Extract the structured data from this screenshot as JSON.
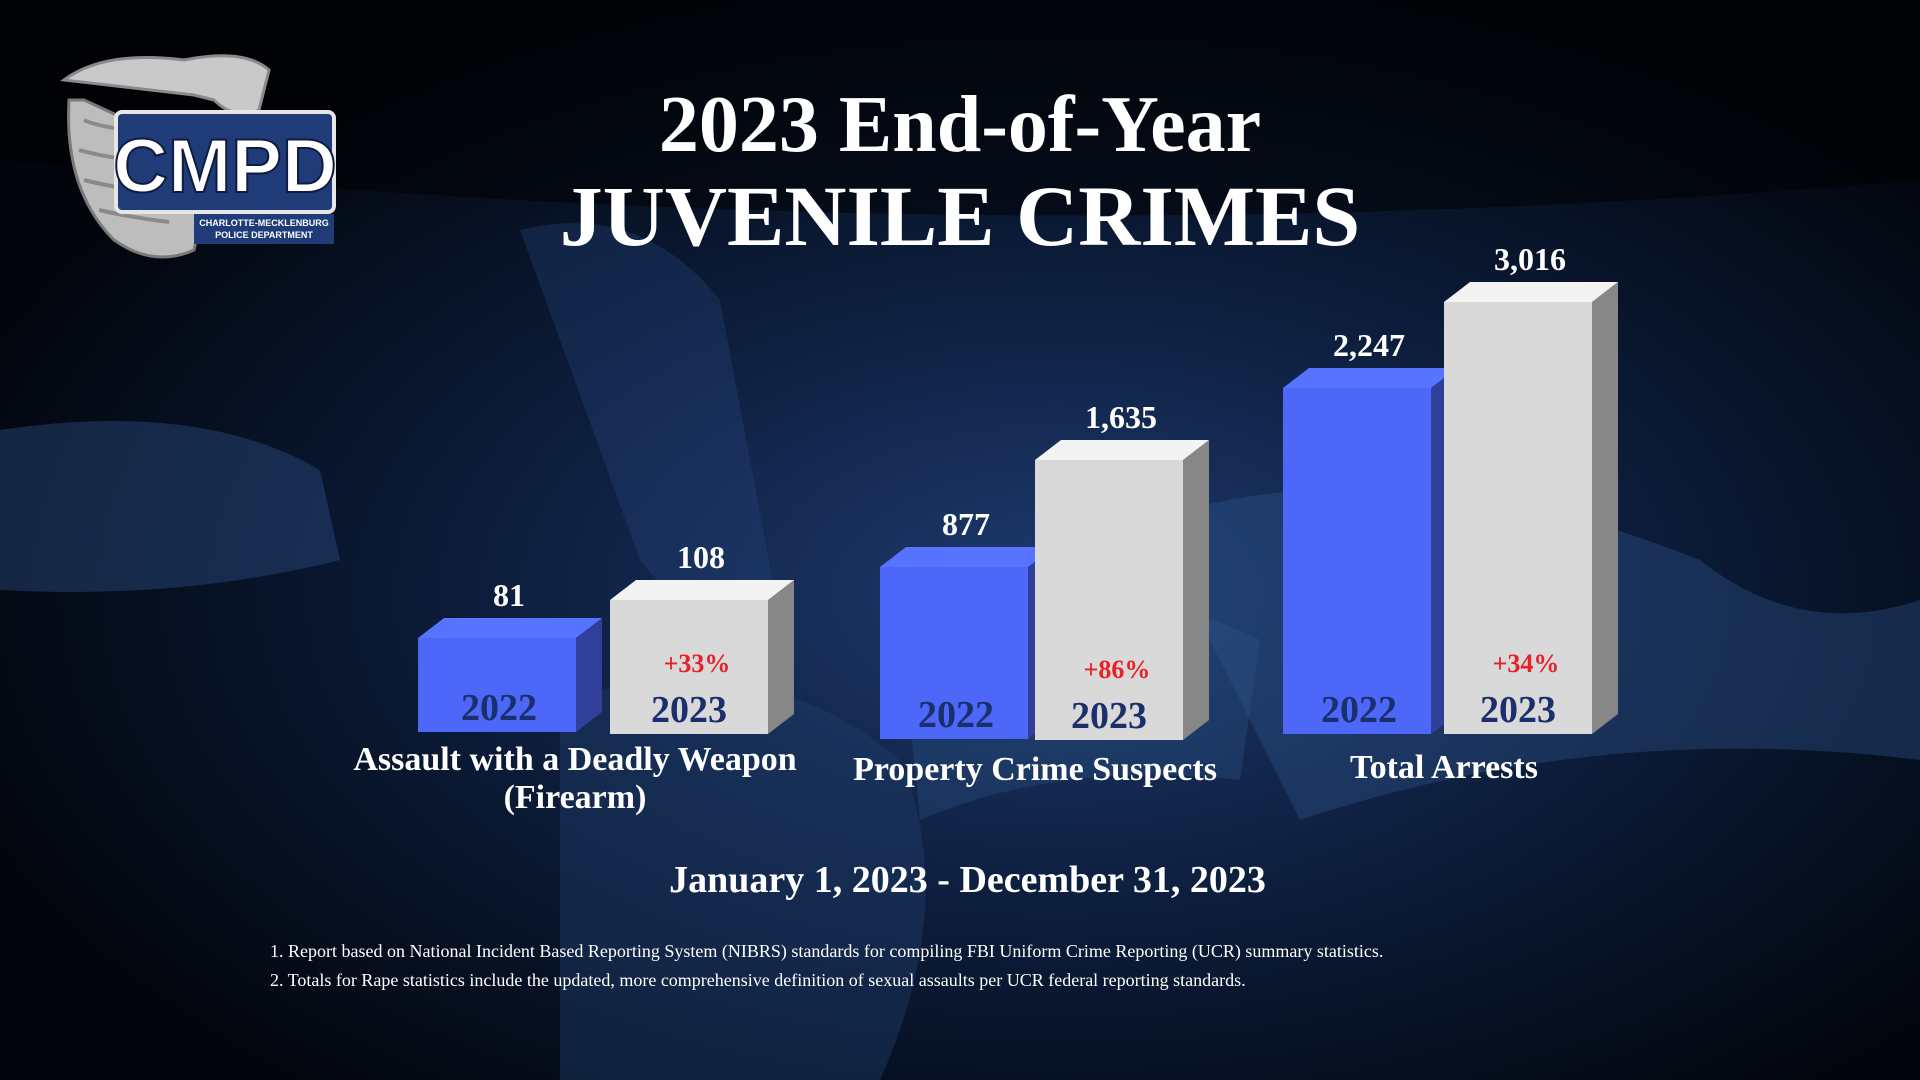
{
  "logo": {
    "wordmark": "CMPD",
    "subtitle_line1": "CHARLOTTE-MECKLENBURG",
    "subtitle_line2": "POLICE DEPARTMENT"
  },
  "title": {
    "line1": "2023 End-of-Year",
    "line2": "JUVENILE CRIMES"
  },
  "colors": {
    "bar_2022": "#4d68f8",
    "bar_2023": "#d9d9d9",
    "year_label": "#1a2f6b",
    "change_label": "#e8202a"
  },
  "chart_data": {
    "type": "bar",
    "categories": [
      "Assault with a Deadly Weapon (Firearm)",
      "Property Crime Suspects",
      "Total Arrests"
    ],
    "series": [
      {
        "name": "2022",
        "values": [
          81,
          877,
          2247
        ],
        "labels": [
          "81",
          "877",
          "2,247"
        ]
      },
      {
        "name": "2023",
        "values": [
          108,
          1635,
          3016
        ],
        "labels": [
          "108",
          "1,635",
          "3,016"
        ]
      }
    ],
    "changes": [
      "+33%",
      "+86%",
      "+34%"
    ],
    "category_lines": [
      [
        "Assault with a Deadly Weapon",
        "(Firearm)"
      ],
      [
        "Property Crime Suspects"
      ],
      [
        "Total Arrests"
      ]
    ],
    "grid": false,
    "legend": "none"
  },
  "date_range": "January 1, 2023 - December 31, 2023",
  "footnotes": [
    "1. Report based on National Incident Based Reporting System (NIBRS) standards for compiling FBI Uniform Crime Reporting (UCR) summary statistics.",
    "2. Totals for Rape statistics include the updated, more comprehensive definition of sexual assaults per UCR federal reporting standards."
  ]
}
